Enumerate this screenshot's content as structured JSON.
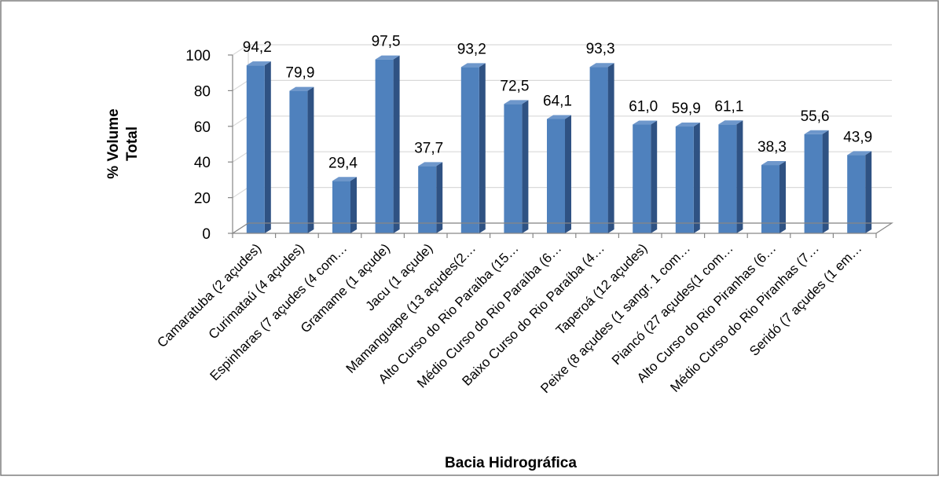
{
  "chart_data": {
    "type": "bar",
    "style": "3d-column",
    "xlabel": "Bacia Hidrográfica",
    "ylabel_lines": [
      "% Volume",
      "Total"
    ],
    "ylim": [
      0,
      100
    ],
    "yticks": [
      0,
      20,
      40,
      60,
      80,
      100
    ],
    "yticks_text": [
      "0",
      "20",
      "40",
      "60",
      "80",
      "100"
    ],
    "grid": true,
    "legend": "none",
    "categories": [
      "Camaratuba (2 açudes)",
      "Curimataú (4 açudes)",
      "Espinharas (7 açudes (4 com…",
      "Gramame (1 açude)",
      "Jacu (1 açude)",
      "Mamanguape (13 açudes(2…",
      "Alto Curso do Rio Paraíba (15…",
      "Médio Curso do Rio Paraíba (6…",
      "Baixo Curso do Rio Paraíba (4…",
      "Taperoá (12 açudes)",
      "Peixe (8 açudes (1 sangr. 1 com…",
      "Piancó (27 açudes(1 com…",
      "Alto Curso do Rio Piranhas (6…",
      "Médio Curso do Rio Piranhas (7…",
      "Seridó (7 açudes (1  em…"
    ],
    "values": [
      94.2,
      79.9,
      29.4,
      97.5,
      37.7,
      93.2,
      72.5,
      64.1,
      93.3,
      61.0,
      59.9,
      61.1,
      38.3,
      55.6,
      43.9
    ],
    "data_labels": [
      "94,2",
      "79,9",
      "29,4",
      "97,5",
      "37,7",
      "93,2",
      "72,5",
      "64,1",
      "93,3",
      "61,0",
      "59,9",
      "61,1",
      "38,3",
      "55,6",
      "43,9"
    ],
    "colors": {
      "bar_front": "#4F81BD",
      "bar_side": "#2F5283",
      "bar_top": "#6E97CB",
      "grid": "#D9D9D9",
      "axis": "#868686",
      "frame": "#7F7F7F"
    }
  }
}
